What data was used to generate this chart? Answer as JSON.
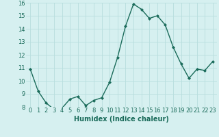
{
  "x": [
    0,
    1,
    2,
    3,
    4,
    5,
    6,
    7,
    8,
    9,
    10,
    11,
    12,
    13,
    14,
    15,
    16,
    17,
    18,
    19,
    20,
    21,
    22,
    23
  ],
  "y": [
    10.9,
    9.2,
    8.3,
    7.8,
    7.9,
    8.6,
    8.8,
    8.1,
    8.5,
    8.7,
    9.9,
    11.8,
    14.2,
    15.9,
    15.5,
    14.8,
    15.0,
    14.3,
    12.6,
    11.3,
    10.2,
    10.9,
    10.8,
    11.5
  ],
  "xlabel": "Humidex (Indice chaleur)",
  "ylim": [
    8,
    16
  ],
  "xlim_min": -0.5,
  "xlim_max": 23.5,
  "yticks": [
    8,
    9,
    10,
    11,
    12,
    13,
    14,
    15,
    16
  ],
  "xticks": [
    0,
    1,
    2,
    3,
    4,
    5,
    6,
    7,
    8,
    9,
    10,
    11,
    12,
    13,
    14,
    15,
    16,
    17,
    18,
    19,
    20,
    21,
    22,
    23
  ],
  "line_color": "#1a6b5a",
  "marker": "D",
  "marker_size": 2.0,
  "bg_color": "#d6f0f0",
  "grid_color": "#b8dede",
  "line_width": 1.0,
  "xlabel_fontsize": 7,
  "tick_fontsize": 6
}
